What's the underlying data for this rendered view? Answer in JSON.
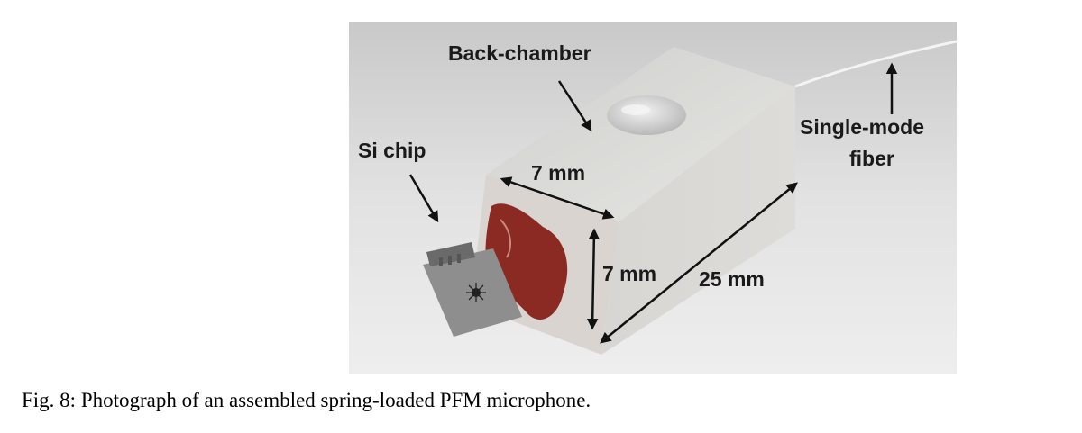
{
  "figure": {
    "labels": {
      "back_chamber": "Back-chamber",
      "si_chip": "Si chip",
      "width": "7 mm",
      "height": "7 mm",
      "length": "25 mm",
      "fiber_line1": "Single-mode",
      "fiber_line2": "fiber"
    }
  },
  "caption": "Fig. 8: Photograph of an assembled spring-loaded PFM microphone."
}
